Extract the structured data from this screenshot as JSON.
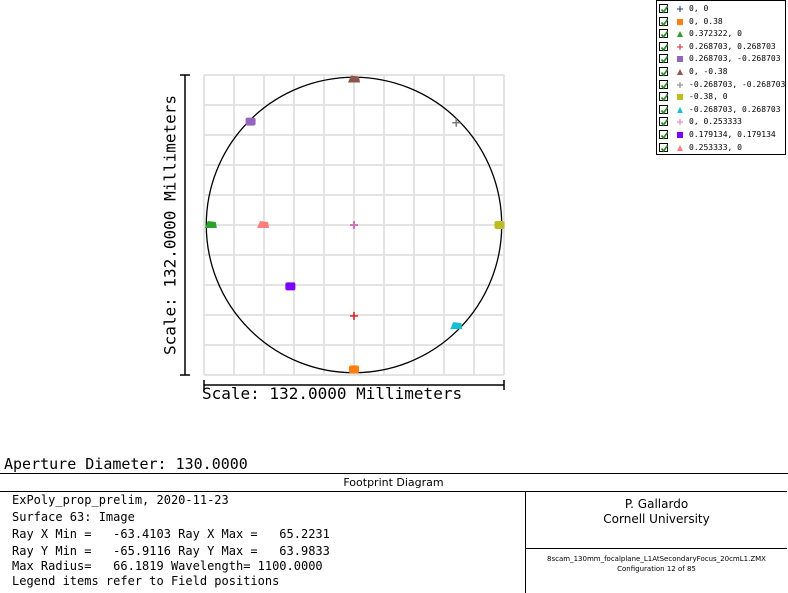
{
  "chart_data": {
    "type": "scatter",
    "title": "Footprint Diagram",
    "xlabel": "Scale: 132.0000 Millimeters",
    "ylabel": "Scale: 132.0000 Millimeters",
    "xlim": [
      -66,
      66
    ],
    "ylim": [
      -66,
      66
    ],
    "grid": true,
    "aperture_circle_diameter": 130.0,
    "legend_position": "top-right",
    "series": [
      {
        "name": "0, 0",
        "marker": "plus",
        "color": "#1f3a6b",
        "x": 0.0,
        "y": 0.0
      },
      {
        "name": "0, 0.38",
        "marker": "square",
        "color": "#ff7f0e",
        "x": 0.0,
        "y": -63.5
      },
      {
        "name": "0.372322, 0",
        "marker": "triangle",
        "color": "#2ca02c",
        "x": -63.0,
        "y": 0.0
      },
      {
        "name": "0.268703, 0.268703",
        "marker": "plus",
        "color": "#d62728",
        "x": 0.0,
        "y": -40.0
      },
      {
        "name": "0.268703, -0.268703",
        "marker": "square",
        "color": "#9467bd",
        "x": -45.5,
        "y": 45.5
      },
      {
        "name": "0, -0.38",
        "marker": "triangle",
        "color": "#8c564b",
        "x": 0.0,
        "y": 64.0
      },
      {
        "name": "-0.268703, -0.268703",
        "marker": "plus",
        "color": "#7f7f7f",
        "x": 45.0,
        "y": 45.0
      },
      {
        "name": "-0.38, 0",
        "marker": "square",
        "color": "#bcbd22",
        "x": 64.0,
        "y": 0.0
      },
      {
        "name": "-0.268703, 0.268703",
        "marker": "triangle",
        "color": "#17becf",
        "x": 45.0,
        "y": -44.5
      },
      {
        "name": "0, 0.253333",
        "marker": "plus",
        "color": "#e377c2",
        "x": 0.0,
        "y": 0.0
      },
      {
        "name": "0.179134, 0.179134",
        "marker": "square",
        "color": "#7b00ff",
        "x": -28.0,
        "y": -27.0
      },
      {
        "name": "0.253333, 0",
        "marker": "triangle",
        "color": "#ff7f7f",
        "x": -40.0,
        "y": 0.0
      }
    ]
  },
  "aperture_label": "Aperture Diameter: 130.0000",
  "info": {
    "title": "Footprint Diagram",
    "lines": [
      "ExPoly_prop_prelim, 2020-11-23",
      "Surface 63: Image",
      "Ray X Min =   -63.4103 Ray X Max =   65.2231",
      "Ray Y Min =   -65.9116 Ray Y Max =   63.9833",
      "Max Radius=   66.1819 Wavelength= 1100.0000",
      "Legend items refer to Field positions"
    ],
    "author": "P. Gallardo",
    "institution": "Cornell University",
    "file": "8scam_130mm_focalplane_L1AtSecondaryFocus_20cmL1.ZMX",
    "configuration": "Configuration 12 of 85"
  }
}
